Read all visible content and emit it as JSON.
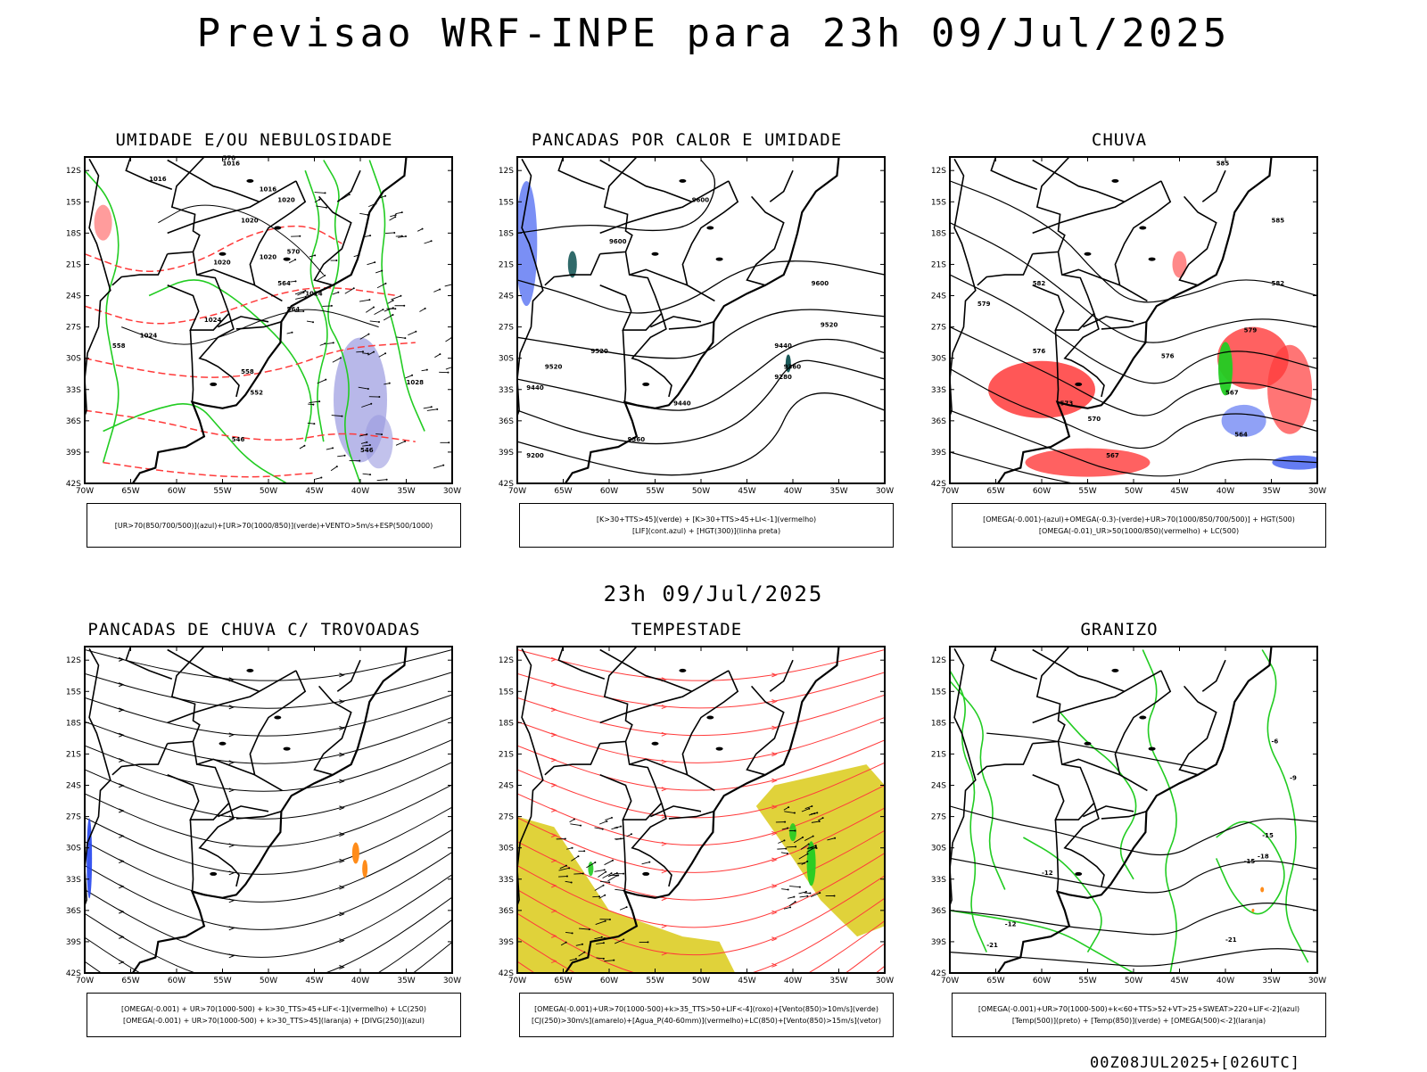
{
  "header": {
    "title": "Previsao WRF-INPE  para 23h 09/Jul/2025",
    "mid_date": "23h 09/Jul/2025",
    "run_info": "00Z08JUL2025+[026UTC]"
  },
  "axes": {
    "lat_ticks": [
      "12S",
      "15S",
      "18S",
      "21S",
      "24S",
      "27S",
      "30S",
      "33S",
      "36S",
      "39S",
      "42S"
    ],
    "lon_ticks": [
      "70W",
      "65W",
      "60W",
      "55W",
      "50W",
      "45W",
      "40W",
      "35W",
      "30W"
    ]
  },
  "colors": {
    "red": "#ff3a3a",
    "green": "#22cc22",
    "blue": "#2244ee",
    "purple_shade": "#9a9ae0",
    "yellow": "#e0d23a",
    "orange": "#ff8c1a",
    "teal": "#1a5a5a"
  },
  "panels": [
    {
      "id": "umidade",
      "title": "UMIDADE E/OU NEBULOSIDADE",
      "legend": [
        "[UR>70(850/700/500)](azul)+[UR>70(1000/850)](verde)+VENTO>5m/s+ESP(500/1000)"
      ],
      "labels": [
        "1016",
        "1016",
        "1016",
        "1020",
        "1020",
        "1020",
        "1020",
        "1024",
        "1024",
        "1024",
        "1028",
        "570",
        "570",
        "564",
        "564",
        "558",
        "552",
        "546",
        "546",
        "558"
      ]
    },
    {
      "id": "pancadas_calor",
      "title": "PANCADAS POR CALOR E UMIDADE",
      "legend": [
        "[K>30+TTS>45](verde) + [K>30+TTS>45+LI<-1](vermelho)",
        "[LIF](cont.azul) + [HGT(300)](linha preta)"
      ],
      "labels": [
        "9600",
        "9600",
        "9600",
        "9520",
        "9520",
        "9520",
        "9440",
        "9440",
        "9440",
        "9360",
        "9360",
        "9280",
        "9200"
      ]
    },
    {
      "id": "chuva",
      "title": "CHUVA",
      "legend": [
        "[OMEGA(-0.001)-(azul)+OMEGA(-0.3)-(verde)+UR>70(1000/850/700/500)] + HGT(500)",
        "[OMEGA(-0.01)_UR>50(1000/850)(vermelho) + LC(500)"
      ],
      "labels": [
        "585",
        "585",
        "582",
        "582",
        "579",
        "579",
        "576",
        "576",
        "573",
        "570",
        "567",
        "567",
        "564"
      ]
    },
    {
      "id": "pancadas_trovoadas",
      "title": "PANCADAS DE CHUVA C/ TROVOADAS",
      "legend": [
        "[OMEGA(-0.001) + UR>70(1000-500) + k>30_TTS>45+LIF<-1](vermelho) + LC(250)",
        "[OMEGA(-0.001) + UR>70(1000-500) + k>30_TTS>45](laranja) + [DIVG(250)](azul)"
      ],
      "labels": []
    },
    {
      "id": "tempestade",
      "title": "TEMPESTADE",
      "legend": [
        "[OMEGA(-0.001)+UR>70(1000-500)+k>35_TTS>50+LIF<-4](roxo)+[Vento(850)>10m/s](verde)",
        "[CJ(250)>30m/s](amarelo)+[Agua_P(40-60mm)](vermelho)+LC(850)+[Vento(850)>15m/s](vetor)"
      ],
      "labels": []
    },
    {
      "id": "granizo",
      "title": "GRANIZO",
      "legend": [
        "[OMEGA(-0.001)+UR>70(1000-500)+k<60+TTS>52+VT>25+SWEAT>220+LIF<-2](azul)",
        "[Temp(500)](preto) + [Temp(850)](verde) + [OMEGA(500)<-2](laranja)"
      ],
      "labels": [
        "-12",
        "-12",
        "-15",
        "-15",
        "-18",
        "-21",
        "-21",
        "-9",
        "-6"
      ]
    }
  ]
}
